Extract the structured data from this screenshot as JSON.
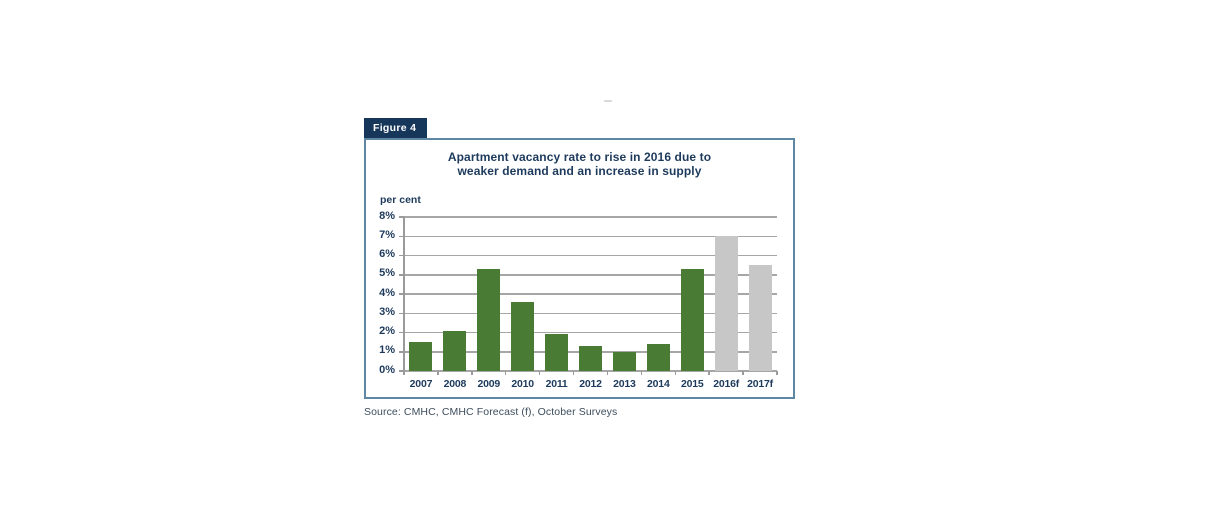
{
  "figure": {
    "label": "Figure 4",
    "title_line1": "Apartment vacancy rate to rise in 2016 due to",
    "title_line2": "weaker demand and an increase in supply",
    "axis_unit_label": "per cent",
    "source": "Source: CMHC, CMHC Forecast (f), October Surveys"
  },
  "colors": {
    "tab_background": "#16365a",
    "tab_text": "#ffffff",
    "box_border": "#5d87a3",
    "title_text": "#1d3a5c",
    "tick_text": "#1d3a5c",
    "bar_actual": "#4a7b35",
    "bar_forecast": "#c7c7c7",
    "gridline": "#a6a6a6",
    "axis": "#9a9a9a",
    "source_text": "#3d4d5d"
  },
  "chart_data": {
    "type": "bar",
    "title": "Apartment vacancy rate to rise in 2016 due to weaker demand and an increase in supply",
    "xlabel": "",
    "ylabel": "per cent",
    "categories": [
      "2007",
      "2008",
      "2009",
      "2010",
      "2011",
      "2012",
      "2013",
      "2014",
      "2015",
      "2016f",
      "2017f"
    ],
    "values": [
      1.5,
      2.1,
      5.3,
      3.6,
      1.9,
      1.3,
      1.0,
      1.4,
      5.3,
      7.0,
      5.5
    ],
    "bar_kinds": [
      "actual",
      "actual",
      "actual",
      "actual",
      "actual",
      "actual",
      "actual",
      "actual",
      "actual",
      "forecast",
      "forecast"
    ],
    "ylim": [
      0,
      8
    ],
    "ytick_labels": [
      "0%",
      "1%",
      "2%",
      "3%",
      "4%",
      "5%",
      "6%",
      "7%",
      "8%"
    ],
    "grid": true,
    "legend_position": "none",
    "source": "Source: CMHC, CMHC Forecast (f), October Surveys"
  }
}
